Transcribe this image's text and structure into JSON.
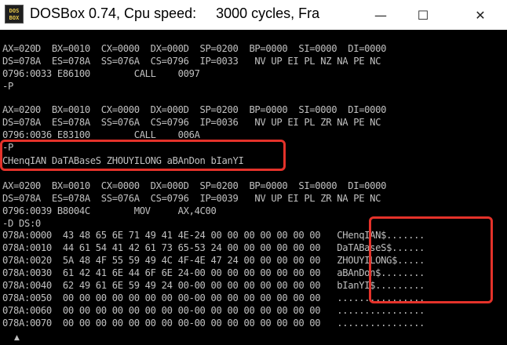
{
  "window": {
    "icon_text_line1": "DOS",
    "icon_text_line2": "BOX",
    "title": "DOSBox 0.74, Cpu speed:     3000 cycles, Fra",
    "minimize_glyph": "—",
    "maximize_glyph": "☐",
    "close_glyph": "✕"
  },
  "console": {
    "lines": [
      "AX=020D  BX=0010  CX=0000  DX=000D  SP=0200  BP=0000  SI=0000  DI=0000",
      "DS=078A  ES=078A  SS=076A  CS=0796  IP=0033   NV UP EI PL NZ NA PE NC",
      "0796:0033 E86100        CALL    0097",
      "-P",
      "",
      "AX=0200  BX=0010  CX=0000  DX=000D  SP=0200  BP=0000  SI=0000  DI=0000",
      "DS=078A  ES=078A  SS=076A  CS=0796  IP=0036   NV UP EI PL ZR NA PE NC",
      "0796:0036 E83100        CALL    006A",
      "-P",
      "CHenqIAN DaTABaseS ZHOUYILONG aBAnDon bIanYI",
      "",
      "AX=0200  BX=0010  CX=0000  DX=000D  SP=0200  BP=0000  SI=0000  DI=0000",
      "DS=078A  ES=078A  SS=076A  CS=0796  IP=0039   NV UP EI PL ZR NA PE NC",
      "0796:0039 B8004C        MOV     AX,4C00",
      "-D DS:0",
      "078A:0000  43 48 65 6E 71 49 41 4E-24 00 00 00 00 00 00 00   CHenqIAN$.......",
      "078A:0010  44 61 54 41 42 61 73 65-53 24 00 00 00 00 00 00   DaTABaseS$......",
      "078A:0020  5A 48 4F 55 59 49 4C 4F-4E 47 24 00 00 00 00 00   ZHOUYILONG$.....",
      "078A:0030  61 42 41 6E 44 6F 6E 24-00 00 00 00 00 00 00 00   aBAnDon$........",
      "078A:0040  62 49 61 6E 59 49 24 00-00 00 00 00 00 00 00 00   bIanYI$.........",
      "078A:0050  00 00 00 00 00 00 00 00-00 00 00 00 00 00 00 00   ................",
      "078A:0060  00 00 00 00 00 00 00 00-00 00 00 00 00 00 00 00   ................",
      "078A:0070  00 00 00 00 00 00 00 00-00 00 00 00 00 00 00 00   ................",
      "-"
    ]
  },
  "colors": {
    "console_text": "#c0c0c0",
    "console_bg": "#000000",
    "highlight": "#e4322a"
  },
  "scroll_glyph": "▲"
}
